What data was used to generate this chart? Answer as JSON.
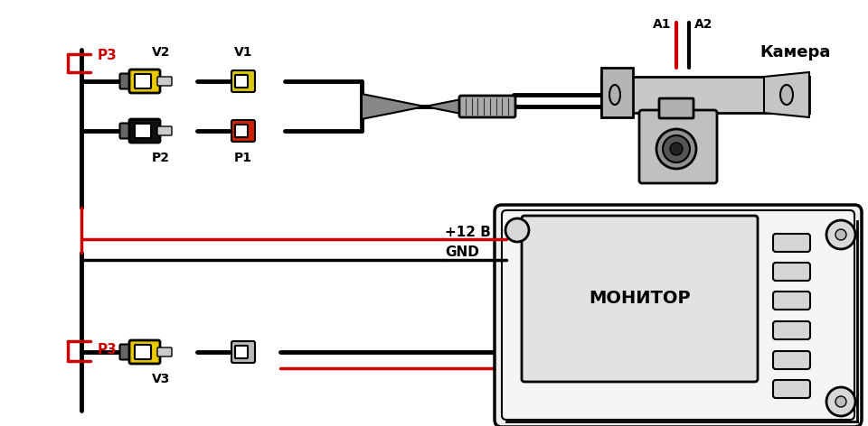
{
  "bg_color": "#ffffff",
  "line_color": "#000000",
  "red_color": "#cc0000",
  "yellow_color": "#e8c800",
  "gray_color": "#aaaaaa",
  "dark_gray": "#555555",
  "light_gray": "#d0d0d0",
  "labels": {
    "V2": "V2",
    "V1": "V1",
    "P2": "P2",
    "P1": "P1",
    "V3": "V3",
    "P3": "P3",
    "A1": "A1",
    "A2": "A2",
    "camera": "Камера",
    "monitor": "МОНИТОР",
    "plus12v": "+12 В",
    "gnd": "GND"
  },
  "figsize": [
    9.6,
    4.72
  ],
  "dpi": 100
}
